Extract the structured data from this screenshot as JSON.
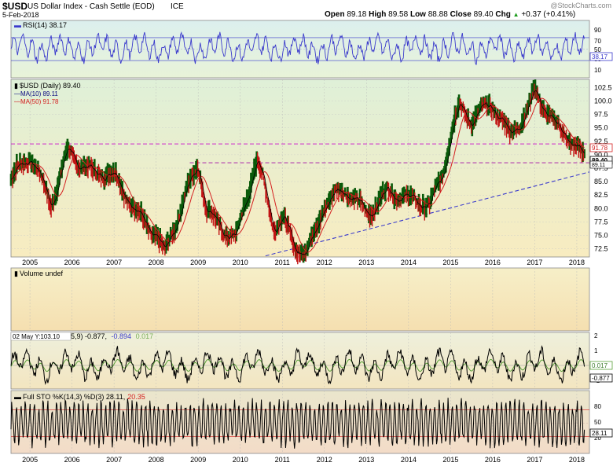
{
  "header": {
    "symbol": "$USD",
    "name": "US Dollar Index - Cash Settle (EOD)",
    "exchange": "ICE",
    "watermark": "@StockCharts.com",
    "date": "5-Feb-2018",
    "quote": [
      {
        "label": "Open",
        "value": "89.18"
      },
      {
        "label": "High",
        "value": "89.58"
      },
      {
        "label": "Low",
        "value": "88.88"
      },
      {
        "label": "Close",
        "value": "89.40"
      },
      {
        "label": "Chg",
        "value": "+0.37 (+0.41%)"
      }
    ],
    "chg_icon": "up-triangle-icon"
  },
  "panels": {
    "rsi": {
      "label": "RSI(14) 38.17",
      "ticks": [
        "90",
        "70",
        "50",
        "30",
        "10"
      ],
      "value_tag": "38.17"
    },
    "price": {
      "label": "$USD (Daily) 89.40",
      "ma10_label": "MA(10) 89.11",
      "ma50_label": "MA(50) 91.78",
      "ticks": [
        "102.5",
        "100.0",
        "97.5",
        "95.0",
        "92.5",
        "90.0",
        "87.5",
        "85.0",
        "82.5",
        "80.0",
        "77.5",
        "75.0",
        "72.5"
      ],
      "tag_ma50": "91.78",
      "tag_close": "89.40",
      "tag_ma10": "89.11"
    },
    "volume": {
      "label": "Volume undef"
    },
    "macd": {
      "label_prefix": "02 May Y:103.10",
      "label_mid": "5,9) -0.877,",
      "label_signal": "-0.894",
      "label_hist": "0.017",
      "ticks": [
        "2",
        "1",
        "0",
        "-1"
      ],
      "tag_hist": "0.017",
      "tag_macd": "-0.877"
    },
    "sto": {
      "label": "Full STO %K(14,3) %D(3) 28.11,",
      "label_d": "20.35",
      "ticks": [
        "80",
        "50",
        "20"
      ],
      "tag_k": "28.11"
    }
  },
  "years": [
    "2005",
    "2006",
    "2007",
    "2008",
    "2009",
    "2010",
    "2011",
    "2012",
    "2013",
    "2014",
    "2015",
    "2016",
    "2017",
    "2018"
  ],
  "colors": {
    "rsi_line": "#3a3acc",
    "price_bar": "#0a5a0a",
    "price_bar_down": "#c21414",
    "ma10": "#000000",
    "ma50": "#d42020",
    "trendline": "#3a3acc",
    "resistance": "#cc22cc",
    "support": "#aa22aa",
    "macd_line": "#000000",
    "macd_signal": "#5aa03a",
    "sto_line": "#000000"
  },
  "chart_data": [
    {
      "type": "line",
      "title": "$USD (Daily) 89.40",
      "x": [
        "2004.5",
        "2005.0",
        "2005.5",
        "2005.9",
        "2006.5",
        "2007.0",
        "2007.5",
        "2008.0",
        "2008.2",
        "2008.6",
        "2009.0",
        "2009.2",
        "2009.5",
        "2009.9",
        "2010.4",
        "2010.8",
        "2011.0",
        "2011.3",
        "2011.6",
        "2012.0",
        "2012.5",
        "2013.0",
        "2013.5",
        "2014.0",
        "2014.5",
        "2014.8",
        "2015.0",
        "2015.2",
        "2015.5",
        "2016.0",
        "2016.4",
        "2016.9",
        "2017.0",
        "2017.5",
        "2017.8",
        "2018.1"
      ],
      "series": [
        {
          "name": "$USD (Daily)",
          "values": [
            85.0,
            88.5,
            81.0,
            92.0,
            86.0,
            85.0,
            80.5,
            76.0,
            71.5,
            79.0,
            88.0,
            80.0,
            78.0,
            75.0,
            88.0,
            76.0,
            78.5,
            74.0,
            73.0,
            80.0,
            82.5,
            80.0,
            84.0,
            80.5,
            80.0,
            87.0,
            95.0,
            100.0,
            96.5,
            98.0,
            93.5,
            100.5,
            103.0,
            94.5,
            92.0,
            89.4
          ]
        }
      ],
      "ylim": [
        71,
        104
      ],
      "annotations": {
        "ma10": 89.11,
        "ma50": 91.78,
        "resistance": 92.0,
        "support": 88.5
      }
    },
    {
      "type": "line",
      "title": "RSI(14) 38.17",
      "ylim": [
        0,
        100
      ],
      "levels": [
        70,
        30
      ],
      "last": 38.17
    },
    {
      "type": "line",
      "title": "Full STO %K(14,3) %D(3) 28.11, 20.35",
      "ylim": [
        0,
        100
      ],
      "levels": [
        80,
        20
      ],
      "last": 28.11
    }
  ]
}
